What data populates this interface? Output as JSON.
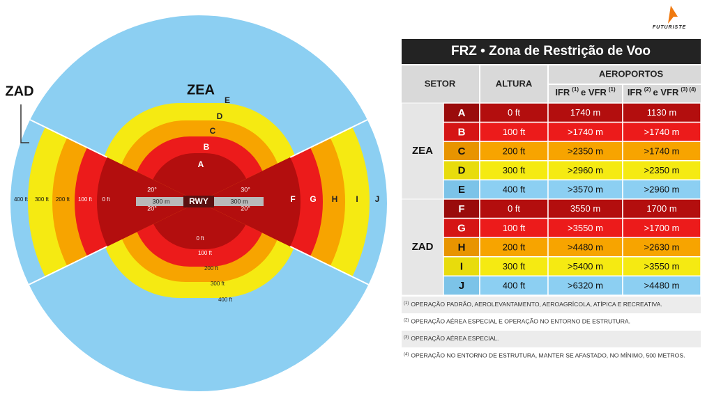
{
  "diagram": {
    "zad_label": "ZAD",
    "zea_label": "ZEA",
    "zones": [
      "A",
      "B",
      "C",
      "D",
      "E"
    ],
    "sector_heights": [
      "400 ft",
      "300 ft",
      "200 ft",
      "100 ft",
      "0 ft"
    ],
    "sector_letters": [
      "F",
      "G",
      "H",
      "I",
      "J"
    ],
    "ring_heights": [
      "0 ft",
      "100 ft",
      "200 ft",
      "300 ft",
      "400 ft"
    ],
    "angles": {
      "left_top": "20°",
      "left_bottom": "20°",
      "right_top": "30°",
      "right_bottom": "20°"
    },
    "runway": {
      "label": "RWY",
      "left": "300 m",
      "right": "300 m"
    }
  },
  "logo": "FUTURISTE",
  "table": {
    "title": "FRZ • Zona de Restrição de Voo",
    "headers": {
      "setor": "SETOR",
      "altura": "ALTURA",
      "aeroportos": "AEROPORTOS",
      "col1": [
        "IFR",
        "(1)",
        "e VFR",
        "(1)"
      ],
      "col2": [
        "IFR",
        "(2)",
        "e VFR",
        "(3) (4)"
      ]
    },
    "groups": [
      {
        "name": "ZEA",
        "rows": [
          [
            "A",
            "0 ft",
            "1740 m",
            "1130 m"
          ],
          [
            "B",
            "100 ft",
            ">1740 m",
            ">1740 m"
          ],
          [
            "C",
            "200 ft",
            ">2350 m",
            ">1740 m"
          ],
          [
            "D",
            "300 ft",
            ">2960 m",
            ">2350 m"
          ],
          [
            "E",
            "400 ft",
            ">3570 m",
            ">2960 m"
          ]
        ]
      },
      {
        "name": "ZAD",
        "rows": [
          [
            "F",
            "0 ft",
            "3550 m",
            "1700 m"
          ],
          [
            "G",
            "100 ft",
            ">3550 m",
            ">1700 m"
          ],
          [
            "H",
            "200 ft",
            ">4480 m",
            ">2630 m"
          ],
          [
            "I",
            "300 ft",
            ">5400 m",
            ">3550 m"
          ],
          [
            "J",
            "400 ft",
            ">6320 m",
            ">4480 m"
          ]
        ]
      }
    ],
    "footnotes": [
      {
        "ref": "(1)",
        "text": "OPERAÇÃO PADRÃO, AEROLEVANTAMENTO, AEROAGRÍCOLA, ATÍPICA E RECREATIVA."
      },
      {
        "ref": "(2)",
        "text": "OPERAÇÃO AÉREA ESPECIAL E OPERAÇÃO NO ENTORNO DE ESTRUTURA."
      },
      {
        "ref": "(3)",
        "text": "OPERAÇÃO AÉREA ESPECIAL."
      },
      {
        "ref": "(4)",
        "text": "OPERAÇÃO NO ENTORNO DE ESTRUTURA, MANTER SE AFASTADO, NO MÍNIMO, 500 METROS."
      }
    ]
  }
}
